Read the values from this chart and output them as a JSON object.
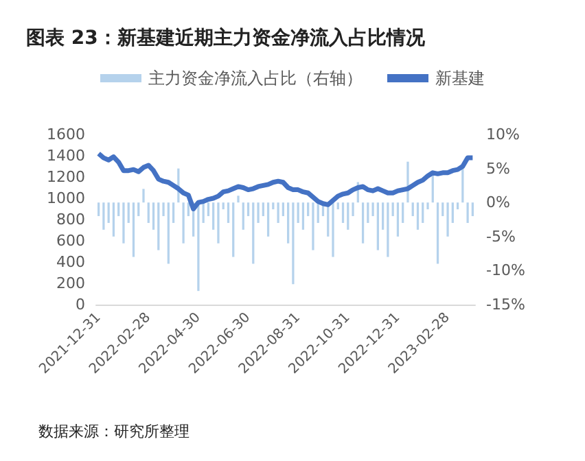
{
  "chart_data": {
    "type": "bar",
    "title": "图表 23：新基建近期主力资金净流入占比情况",
    "annotations": [
      "数据来源：研究所整理"
    ],
    "categories": [
      "2021-12-31",
      null,
      null,
      null,
      null,
      null,
      null,
      null,
      null,
      null,
      "2022-02-28",
      null,
      null,
      null,
      null,
      null,
      null,
      null,
      null,
      null,
      "2022-04-30",
      null,
      null,
      null,
      null,
      null,
      null,
      null,
      null,
      null,
      "2022-06-30",
      null,
      null,
      null,
      null,
      null,
      null,
      null,
      null,
      null,
      "2022-08-31",
      null,
      null,
      null,
      null,
      null,
      null,
      null,
      null,
      null,
      "2022-10-31",
      null,
      null,
      null,
      null,
      null,
      null,
      null,
      null,
      null,
      "2022-12-31",
      null,
      null,
      null,
      null,
      null,
      null,
      null,
      null,
      null,
      "2023-02-28",
      null,
      null,
      null,
      null,
      null
    ],
    "series": [
      {
        "name": "主力资金净流入占比（右轴）",
        "axis": "y2",
        "color": "#5b9bd5",
        "values": [
          -2,
          -4,
          -3,
          -5,
          -2,
          -6,
          -3,
          -8,
          -2,
          2,
          -3,
          -4,
          -7,
          -2,
          -9,
          -3,
          5,
          -6,
          -2,
          -5,
          -13,
          -3,
          -2,
          -4,
          -6,
          -1,
          -3,
          -8,
          1,
          -4,
          -2,
          -9,
          -3,
          -2,
          -5,
          -1,
          -3,
          -2,
          -6,
          -12,
          -3,
          -4,
          -2,
          -7,
          -3,
          -2,
          -5,
          -8,
          -1,
          -3,
          -4,
          -2,
          3,
          -6,
          -3,
          -2,
          -7,
          -4,
          -8,
          -2,
          -5,
          -3,
          6,
          -2,
          -4,
          -3,
          -1,
          4,
          -9,
          -2,
          -5,
          -3,
          -1,
          5,
          -3,
          -2
        ]
      },
      {
        "name": "新基建",
        "type": "line",
        "color": "#4472c4",
        "values": [
          1420,
          1380,
          1360,
          1390,
          1340,
          1260,
          1260,
          1270,
          1250,
          1290,
          1310,
          1260,
          1180,
          1160,
          1150,
          1120,
          1090,
          1050,
          1030,
          900,
          960,
          970,
          990,
          1000,
          1020,
          1060,
          1070,
          1090,
          1110,
          1100,
          1080,
          1090,
          1110,
          1120,
          1130,
          1150,
          1160,
          1150,
          1100,
          1080,
          1080,
          1060,
          1050,
          1010,
          970,
          950,
          940,
          980,
          1020,
          1040,
          1050,
          1080,
          1100,
          1110,
          1080,
          1070,
          1090,
          1070,
          1050,
          1050,
          1070,
          1080,
          1090,
          1120,
          1150,
          1170,
          1210,
          1240,
          1230,
          1240,
          1240,
          1260,
          1270,
          1300,
          1380,
          1380
        ]
      }
    ],
    "ylim": [
      0,
      1600
    ],
    "yticks": [
      0,
      200,
      400,
      600,
      800,
      1000,
      1200,
      1400,
      1600
    ],
    "y2lim": [
      -15,
      10
    ],
    "y2ticks": [
      {
        "value": -15,
        "label": "-15%"
      },
      {
        "value": -10,
        "label": "-10%"
      },
      {
        "value": -5,
        "label": "-5%"
      },
      {
        "value": 0,
        "label": "0%"
      },
      {
        "value": 5,
        "label": "5%"
      },
      {
        "value": 10,
        "label": "10%"
      }
    ],
    "legend": "top",
    "grid": false,
    "marker": "none"
  }
}
